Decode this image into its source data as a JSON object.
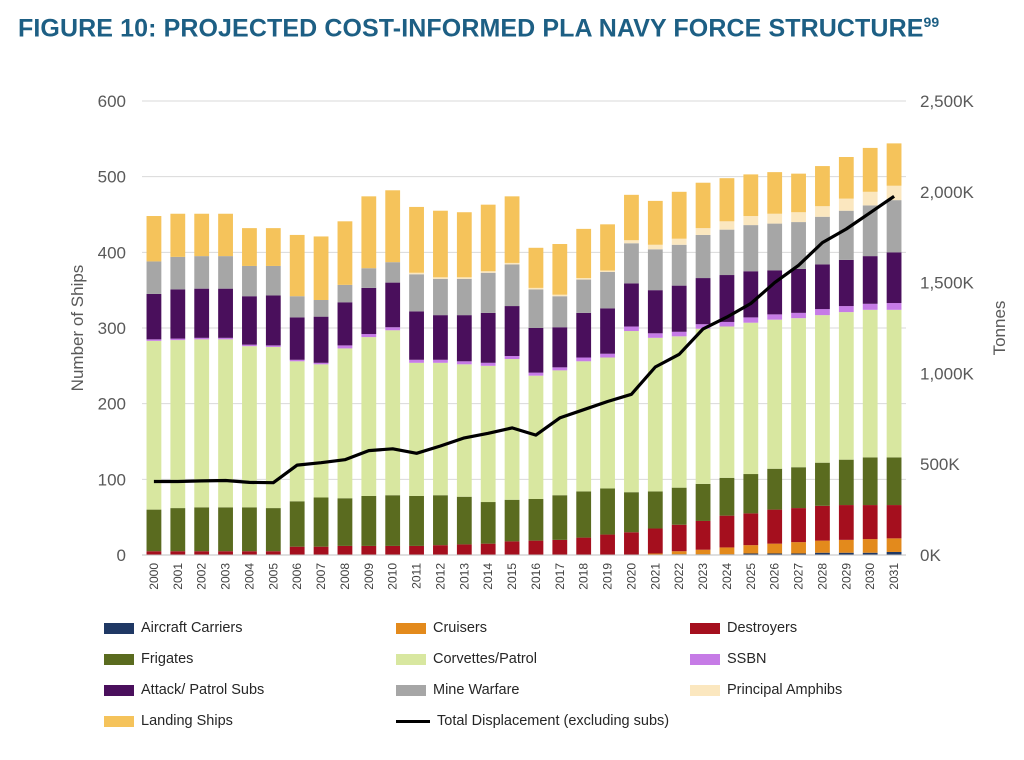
{
  "figure": {
    "title": "FIGURE 10: PROJECTED COST-INFORMED PLA NAVY FORCE STRUCTURE",
    "footnote": "99"
  },
  "chart_data": {
    "type": "bar",
    "stacked": true,
    "categories": [
      "2000",
      "2001",
      "2002",
      "2003",
      "2004",
      "2005",
      "2006",
      "2007",
      "2008",
      "2009",
      "2010",
      "2011",
      "2012",
      "2013",
      "2014",
      "2015",
      "2016",
      "2017",
      "2018",
      "2019",
      "2020",
      "2021",
      "2022",
      "2023",
      "2024",
      "2025",
      "2026",
      "2027",
      "2028",
      "2029",
      "2030",
      "2031"
    ],
    "ylabel": "Number of Ships",
    "ylim": [
      0,
      600
    ],
    "yticks": [
      "0",
      "100",
      "200",
      "300",
      "400",
      "500",
      "600"
    ],
    "y2label": "Tonnes",
    "y2lim": [
      0,
      2500000
    ],
    "y2ticks": [
      "0K",
      "500K",
      "1,000K",
      "1,500K",
      "2,000K",
      "2,500K"
    ],
    "grid": true,
    "legend_position": "bottom",
    "series": [
      {
        "name": "Aircraft Carriers",
        "color": "#1f3864",
        "values": [
          0,
          0,
          0,
          0,
          0,
          0,
          0,
          0,
          0,
          0,
          0,
          0,
          0,
          0,
          0,
          0,
          0,
          0,
          0,
          0,
          0,
          0,
          1,
          1,
          1,
          2,
          2,
          2,
          3,
          3,
          3,
          4
        ]
      },
      {
        "name": "Cruisers",
        "color": "#e38a1c",
        "values": [
          0,
          0,
          0,
          0,
          0,
          0,
          0,
          0,
          0,
          0,
          0,
          0,
          0,
          0,
          0,
          0,
          0,
          0,
          0,
          0,
          0,
          2,
          4,
          6,
          9,
          11,
          13,
          15,
          16,
          17,
          18,
          18
        ]
      },
      {
        "name": "Destroyers",
        "color": "#a50f1e",
        "values": [
          5,
          5,
          5,
          5,
          5,
          5,
          11,
          11,
          12,
          12,
          12,
          12,
          13,
          14,
          15,
          18,
          19,
          20,
          23,
          27,
          30,
          33,
          35,
          38,
          42,
          42,
          45,
          45,
          46,
          46,
          45,
          44
        ]
      },
      {
        "name": "Frigates",
        "color": "#5a6b1f",
        "values": [
          55,
          57,
          58,
          58,
          58,
          57,
          60,
          65,
          63,
          66,
          67,
          66,
          66,
          63,
          55,
          55,
          55,
          59,
          61,
          61,
          53,
          49,
          49,
          49,
          50,
          52,
          54,
          54,
          57,
          60,
          63,
          63
        ]
      },
      {
        "name": "Corvettes/Patrol",
        "color": "#d8e7a0",
        "values": [
          223,
          222,
          222,
          222,
          213,
          213,
          185,
          176,
          198,
          210,
          218,
          176,
          175,
          175,
          180,
          186,
          163,
          165,
          172,
          173,
          213,
          203,
          200,
          205,
          200,
          200,
          197,
          197,
          195,
          195,
          195,
          195
        ]
      },
      {
        "name": "SSBN",
        "color": "#c67be6",
        "values": [
          2,
          2,
          2,
          2,
          2,
          2,
          2,
          2,
          4,
          4,
          4,
          4,
          4,
          4,
          4,
          4,
          4,
          4,
          5,
          5,
          6,
          6,
          6,
          6,
          6,
          7,
          7,
          7,
          8,
          8,
          8,
          9
        ]
      },
      {
        "name": "Attack/ Patrol Subs",
        "color": "#4a0f5c",
        "values": [
          60,
          65,
          65,
          65,
          64,
          66,
          56,
          61,
          57,
          61,
          59,
          64,
          59,
          61,
          66,
          66,
          59,
          53,
          59,
          60,
          57,
          57,
          61,
          61,
          62,
          61,
          58,
          58,
          59,
          61,
          63,
          67
        ]
      },
      {
        "name": "Mine Warfare",
        "color": "#a6a6a6",
        "values": [
          43,
          43,
          43,
          43,
          40,
          39,
          28,
          22,
          23,
          26,
          27,
          49,
          48,
          48,
          53,
          55,
          51,
          41,
          44,
          48,
          53,
          54,
          54,
          57,
          60,
          61,
          62,
          62,
          63,
          65,
          67,
          69
        ]
      },
      {
        "name": "Principal Amphibs",
        "color": "#fbe7bf",
        "values": [
          0,
          0,
          0,
          0,
          0,
          0,
          0,
          0,
          0,
          0,
          0,
          2,
          2,
          2,
          2,
          2,
          2,
          2,
          2,
          2,
          4,
          6,
          8,
          9,
          11,
          12,
          13,
          13,
          14,
          16,
          18,
          19
        ]
      },
      {
        "name": "Landing Ships",
        "color": "#f5c35b",
        "values": [
          60,
          57,
          56,
          56,
          50,
          50,
          81,
          84,
          84,
          95,
          95,
          87,
          88,
          86,
          88,
          88,
          53,
          67,
          65,
          61,
          60,
          58,
          62,
          60,
          57,
          55,
          55,
          51,
          53,
          55,
          58,
          56
        ]
      }
    ],
    "line_series": {
      "name": "Total Displacement (excluding subs)",
      "color": "#000000",
      "axis": "y2",
      "values": [
        405000,
        405000,
        408000,
        410000,
        400000,
        398000,
        495000,
        508000,
        525000,
        575000,
        585000,
        560000,
        600000,
        645000,
        670000,
        700000,
        660000,
        755000,
        800000,
        845000,
        885000,
        1035000,
        1105000,
        1245000,
        1310000,
        1385000,
        1500000,
        1595000,
        1720000,
        1795000,
        1885000,
        1975000
      ]
    }
  }
}
